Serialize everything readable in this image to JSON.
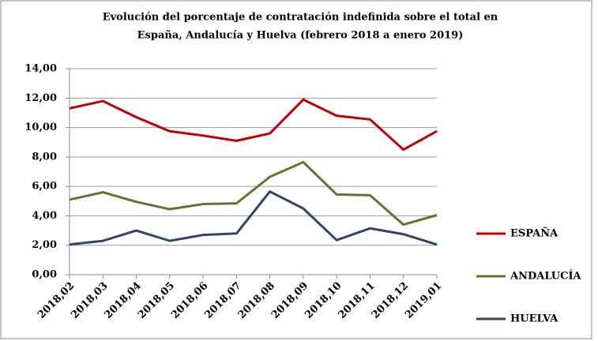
{
  "chart_data": {
    "type": "line",
    "title": [
      "Evolución del porcentaje de contratación indefinida sobre el total  en",
      "España, Andalucía y Huelva (febrero  2018 a enero 2019)"
    ],
    "categories": [
      "2018,02",
      "2018,03",
      "2018,04",
      "2018,05",
      "2018,06",
      "2018,07",
      "2018,08",
      "2018,09",
      "2018,10",
      "2018,11",
      "2018,12",
      "2019,01"
    ],
    "series": [
      {
        "name": "ESPAÑA",
        "color": "#c00000",
        "values": [
          11.3,
          11.8,
          10.7,
          9.75,
          9.45,
          9.1,
          9.6,
          11.9,
          10.8,
          10.55,
          8.5,
          9.75
        ]
      },
      {
        "name": "ANDALUCÍA",
        "color": "#5f7530",
        "values": [
          5.1,
          5.6,
          4.95,
          4.45,
          4.8,
          4.85,
          6.65,
          7.65,
          5.45,
          5.4,
          3.4,
          4.05
        ]
      },
      {
        "name": "HUELVA",
        "color": "#2e4566",
        "values": [
          2.05,
          2.3,
          3.0,
          2.3,
          2.7,
          2.8,
          5.65,
          4.5,
          2.35,
          3.15,
          2.75,
          2.05
        ]
      }
    ],
    "ylim": [
      0,
      14
    ],
    "yticks": [
      {
        "value": 0,
        "label": "0,00"
      },
      {
        "value": 2,
        "label": "2,00"
      },
      {
        "value": 4,
        "label": "4,00"
      },
      {
        "value": 6,
        "label": "6,00"
      },
      {
        "value": 8,
        "label": "8,00"
      },
      {
        "value": 10,
        "label": "10,00"
      },
      {
        "value": 12,
        "label": "12,00"
      },
      {
        "value": 14,
        "label": "14,00"
      }
    ],
    "grid": true,
    "legend": "right"
  }
}
